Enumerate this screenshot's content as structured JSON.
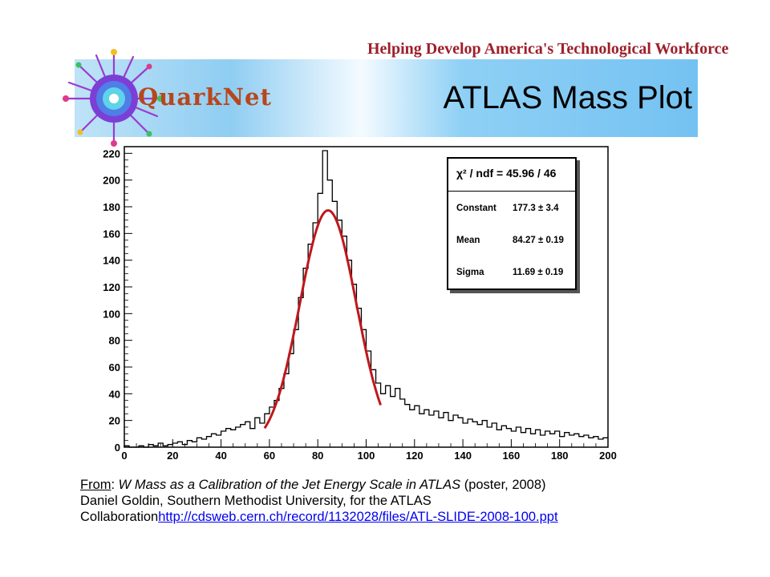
{
  "header": {
    "tagline": "Helping Develop America's Technological Workforce",
    "logo_text": "QuarkNet",
    "slide_title": "ATLAS Mass Plot"
  },
  "colors": {
    "tagline": "#9e1f2a",
    "histogram": "#000000",
    "fit_curve": "#c0171c",
    "banner_blue": "#8fcdf2",
    "link": "#0000ee"
  },
  "fit_box": {
    "chi2_label": "χ² / ndf = 45.96 / 46",
    "rows": [
      {
        "label": "Constant",
        "value": "177.3 ± 3.4"
      },
      {
        "label": "Mean",
        "value": "84.27 ± 0.19"
      },
      {
        "label": "Sigma",
        "value": "11.69 ± 0.19"
      }
    ]
  },
  "caption": {
    "from_label": "From",
    "colon": ": ",
    "title": "W Mass as a Calibration of the Jet Energy Scale in ATLAS",
    "title_suffix": " (poster, 2008)",
    "line2": "Daniel Goldin, Southern Methodist University, for the ATLAS",
    "line3_prefix": "Collaboration",
    "link": "http://cdsweb.cern.ch/record/1132028/files/ATL-SLIDE-2008-100.ppt"
  },
  "chart_data": {
    "type": "histogram",
    "title": "",
    "xlabel": "",
    "ylabel": "",
    "xlim": [
      0,
      200
    ],
    "ylim": [
      0,
      225
    ],
    "xticks": [
      0,
      20,
      40,
      60,
      80,
      100,
      120,
      140,
      160,
      180,
      200
    ],
    "yticks": [
      0,
      20,
      40,
      60,
      80,
      100,
      120,
      140,
      160,
      180,
      200,
      220
    ],
    "grid": false,
    "bin_width": 2,
    "bin_lefts": [
      0,
      2,
      4,
      6,
      8,
      10,
      12,
      14,
      16,
      18,
      20,
      22,
      24,
      26,
      28,
      30,
      32,
      34,
      36,
      38,
      40,
      42,
      44,
      46,
      48,
      50,
      52,
      54,
      56,
      58,
      60,
      62,
      64,
      66,
      68,
      70,
      72,
      74,
      76,
      78,
      80,
      82,
      84,
      86,
      88,
      90,
      92,
      94,
      96,
      98,
      100,
      102,
      104,
      106,
      108,
      110,
      112,
      114,
      116,
      118,
      120,
      122,
      124,
      126,
      128,
      130,
      132,
      134,
      136,
      138,
      140,
      142,
      144,
      146,
      148,
      150,
      152,
      154,
      156,
      158,
      160,
      162,
      164,
      166,
      168,
      170,
      172,
      174,
      176,
      178,
      180,
      182,
      184,
      186,
      188,
      190,
      192,
      194,
      196,
      198
    ],
    "counts": [
      1,
      0,
      0,
      1,
      0,
      2,
      1,
      3,
      1,
      2,
      3,
      4,
      2,
      5,
      4,
      7,
      6,
      8,
      10,
      9,
      12,
      14,
      13,
      15,
      17,
      19,
      14,
      22,
      18,
      25,
      30,
      35,
      44,
      55,
      70,
      88,
      112,
      134,
      152,
      168,
      190,
      222,
      200,
      184,
      170,
      158,
      140,
      122,
      104,
      88,
      72,
      58,
      48,
      40,
      46,
      38,
      44,
      36,
      32,
      28,
      31,
      25,
      28,
      24,
      27,
      22,
      26,
      20,
      24,
      22,
      18,
      21,
      19,
      17,
      20,
      15,
      18,
      13,
      16,
      14,
      12,
      15,
      11,
      14,
      10,
      13,
      9,
      12,
      10,
      12,
      8,
      11,
      9,
      10,
      8,
      9,
      7,
      8,
      6,
      7
    ],
    "fit": {
      "function": "gaussian",
      "constant": 177.3,
      "mean": 84.27,
      "sigma": 11.69,
      "range": [
        58,
        106
      ]
    }
  }
}
